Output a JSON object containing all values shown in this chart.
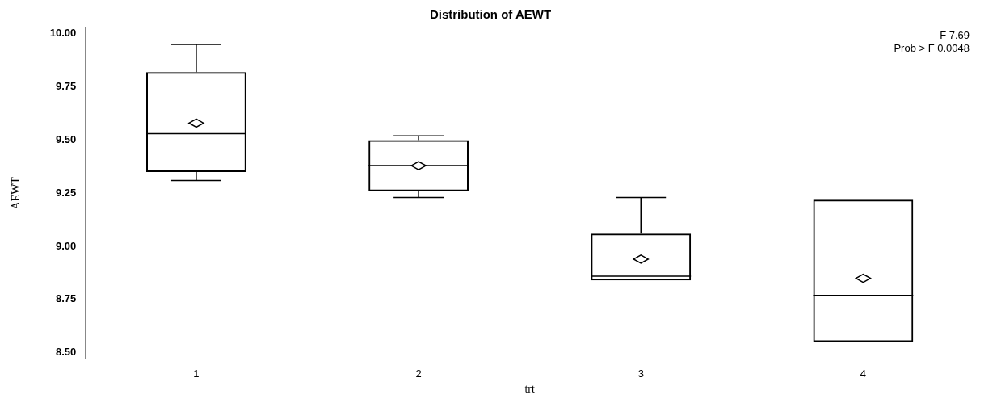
{
  "chart_data": {
    "type": "box",
    "title": "Distribution of AEWT",
    "xlabel": "trt",
    "ylabel": "AEWT",
    "categories": [
      "1",
      "2",
      "3",
      "4"
    ],
    "boxes": [
      {
        "low": 9.31,
        "q1": 9.35,
        "median": 9.53,
        "q3": 9.82,
        "high": 9.95,
        "mean": 9.58
      },
      {
        "low": 9.23,
        "q1": 9.26,
        "median": 9.38,
        "q3": 9.5,
        "high": 9.52,
        "mean": 9.38
      },
      {
        "low": 8.84,
        "q1": 8.84,
        "median": 8.86,
        "q3": 9.06,
        "high": 9.23,
        "mean": 8.94
      },
      {
        "low": 8.55,
        "q1": 8.55,
        "median": 8.77,
        "q3": 9.22,
        "high": 9.22,
        "mean": 8.85
      }
    ],
    "color": "#000000",
    "ylim": [
      8.47,
      10.03
    ],
    "yticks": [
      {
        "value": 8.5,
        "label": "8.50"
      },
      {
        "value": 8.75,
        "label": "8.75"
      },
      {
        "value": 9,
        "label": "9.00"
      },
      {
        "value": 9.25,
        "label": "9.25"
      },
      {
        "value": 9.5,
        "label": "9.50"
      },
      {
        "value": 9.75,
        "label": "9.75"
      },
      {
        "value": 10,
        "label": "10.00"
      }
    ],
    "annotations": [
      "F 7.69",
      "Prob > F 0.0048"
    ],
    "grid": false,
    "legend": false
  }
}
